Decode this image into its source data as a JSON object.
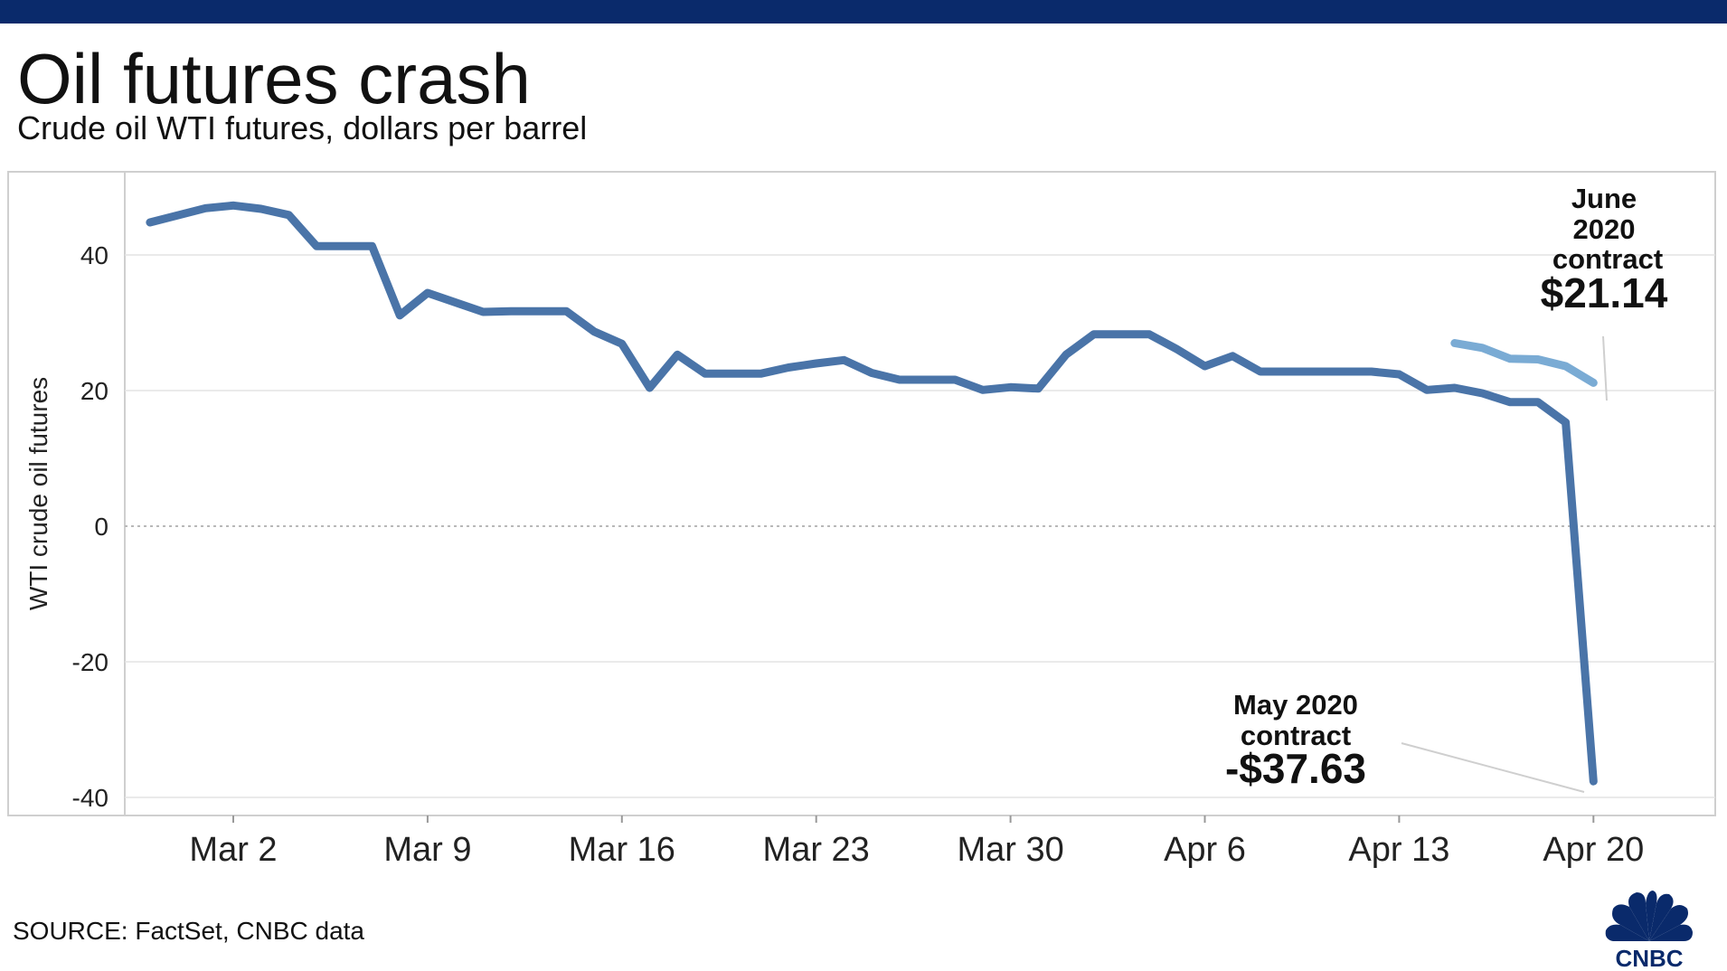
{
  "header": {
    "title": "Oil futures crash",
    "subtitle": "Crude oil WTI futures, dollars per barrel"
  },
  "footer": {
    "source": "SOURCE: FactSet, CNBC data",
    "logo_text": "CNBC"
  },
  "colors": {
    "top_bar": "#0a2a6b",
    "may_series": "#4a74a8",
    "june_series": "#7aabd4",
    "grid": "#e4e4e4",
    "frame": "#cfcfcf"
  },
  "chart_data": {
    "type": "line",
    "ylabel": "WTI crude oil futures",
    "ylim": [
      -40,
      50
    ],
    "yticks": [
      40,
      20,
      0,
      -20,
      -40
    ],
    "ytick_labels": [
      "40",
      "20",
      "0",
      "-20",
      "-40"
    ],
    "xlim": [
      "2020-02-26",
      "2020-04-22"
    ],
    "xticks": [
      "2020-03-02",
      "2020-03-09",
      "2020-03-16",
      "2020-03-23",
      "2020-03-30",
      "2020-04-06",
      "2020-04-13",
      "2020-04-20"
    ],
    "xtick_labels": [
      "Mar 2",
      "Mar 9",
      "Mar 16",
      "Mar 23",
      "Mar 30",
      "Apr 6",
      "Apr 13",
      "Apr 20"
    ],
    "grid": true,
    "zero_line": "dotted",
    "series": [
      {
        "name": "May 2020 contract",
        "color": "#4a74a8",
        "x": [
          "2020-02-28",
          "2020-03-01",
          "2020-03-02",
          "2020-03-03",
          "2020-03-04",
          "2020-03-05",
          "2020-03-06",
          "2020-03-07",
          "2020-03-08",
          "2020-03-09",
          "2020-03-10",
          "2020-03-11",
          "2020-03-12",
          "2020-03-13",
          "2020-03-14",
          "2020-03-15",
          "2020-03-16",
          "2020-03-17",
          "2020-03-18",
          "2020-03-19",
          "2020-03-20",
          "2020-03-21",
          "2020-03-22",
          "2020-03-23",
          "2020-03-24",
          "2020-03-25",
          "2020-03-26",
          "2020-03-27",
          "2020-03-28",
          "2020-03-29",
          "2020-03-30",
          "2020-03-31",
          "2020-04-01",
          "2020-04-02",
          "2020-04-03",
          "2020-04-04",
          "2020-04-05",
          "2020-04-06",
          "2020-04-07",
          "2020-04-08",
          "2020-04-09",
          "2020-04-10",
          "2020-04-11",
          "2020-04-12",
          "2020-04-13",
          "2020-04-14",
          "2020-04-15",
          "2020-04-16",
          "2020-04-17",
          "2020-04-18",
          "2020-04-19",
          "2020-04-20"
        ],
        "y": [
          44.8,
          46.9,
          47.3,
          46.8,
          45.9,
          41.3,
          41.3,
          41.3,
          31.1,
          34.4,
          33.0,
          31.6,
          31.7,
          31.7,
          31.7,
          28.7,
          26.9,
          20.4,
          25.3,
          22.5,
          22.5,
          22.5,
          23.4,
          24.0,
          24.5,
          22.6,
          21.6,
          21.6,
          21.6,
          20.1,
          20.5,
          20.3,
          25.3,
          28.3,
          28.3,
          28.3,
          26.1,
          23.6,
          25.1,
          22.8,
          22.8,
          22.8,
          22.8,
          22.8,
          22.4,
          20.1,
          20.4,
          19.6,
          18.3,
          18.3,
          15.3,
          -37.63
        ]
      },
      {
        "name": "June 2020 contract",
        "color": "#7aabd4",
        "x": [
          "2020-04-15",
          "2020-04-16",
          "2020-04-17",
          "2020-04-18",
          "2020-04-19",
          "2020-04-20"
        ],
        "y": [
          27.0,
          26.3,
          24.7,
          24.6,
          23.6,
          21.14
        ]
      }
    ],
    "annotations": [
      {
        "lines": [
          "June",
          "2020",
          "contract"
        ],
        "value": "$21.14"
      },
      {
        "lines": [
          "May 2020",
          "contract"
        ],
        "value": "-$37.63"
      }
    ]
  }
}
